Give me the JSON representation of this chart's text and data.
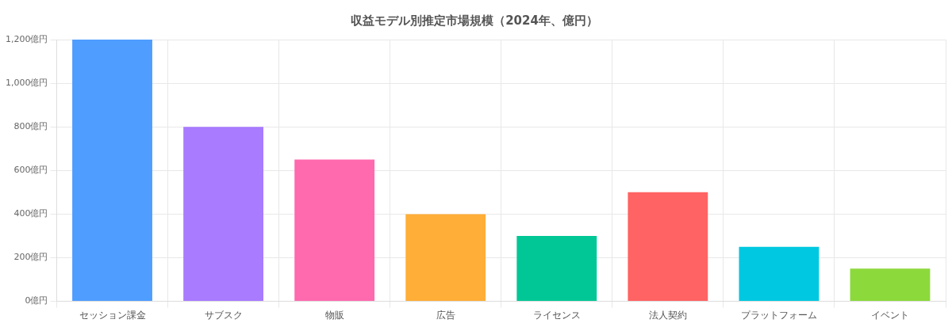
{
  "chart_data": {
    "type": "bar",
    "title": "収益モデル別推定市場規模（2024年、億円）",
    "categories": [
      "セッション課金",
      "サブスク",
      "物販",
      "広告",
      "ライセンス",
      "法人契約",
      "プラットフォーム",
      "イベント"
    ],
    "values": [
      1200,
      800,
      650,
      400,
      300,
      500,
      250,
      150
    ],
    "colors": [
      "#4f9dff",
      "#a87bff",
      "#ff69ae",
      "#ffae38",
      "#00c795",
      "#ff6363",
      "#00c8e0",
      "#8cd93c"
    ],
    "ylim": [
      0,
      1200
    ],
    "yticks": [
      {
        "value": 0,
        "label": "0億円"
      },
      {
        "value": 200,
        "label": "200億円"
      },
      {
        "value": 400,
        "label": "400億円"
      },
      {
        "value": 600,
        "label": "600億円"
      },
      {
        "value": 800,
        "label": "800億円"
      },
      {
        "value": 1000,
        "label": "1,000億円"
      },
      {
        "value": 1200,
        "label": "1,200億円"
      }
    ],
    "grid": true,
    "legend": false
  }
}
